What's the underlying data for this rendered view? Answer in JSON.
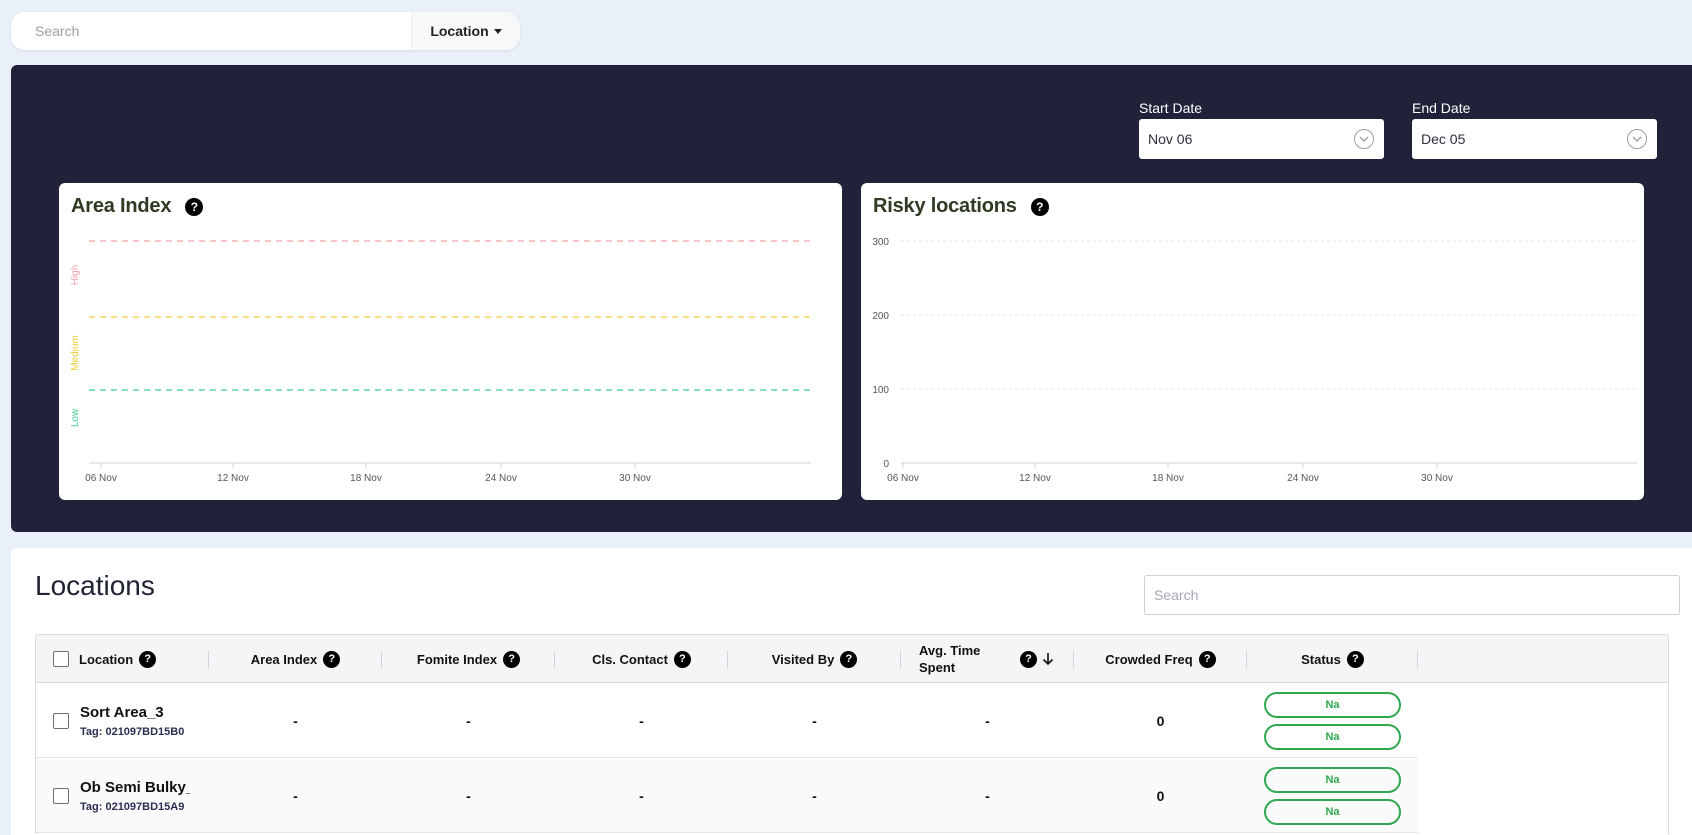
{
  "topbar": {
    "search_placeholder": "Search",
    "location_button": "Location"
  },
  "dates": {
    "start_label": "Start Date",
    "start_value": "Nov 06",
    "end_label": "End Date",
    "end_value": "Dec 05"
  },
  "charts": {
    "area_index_title": "Area Index",
    "risky_title": "Risky locations"
  },
  "chart_data": [
    {
      "type": "line",
      "title": "Area Index",
      "x_ticks": [
        "06 Nov",
        "12 Nov",
        "18 Nov",
        "24 Nov",
        "30 Nov"
      ],
      "y_bands": [
        "Low",
        "Medium",
        "High"
      ],
      "threshold_lines": [
        {
          "name": "High",
          "color": "#f4a3a3"
        },
        {
          "name": "Medium",
          "color": "#f2cc3a"
        },
        {
          "name": "Low",
          "color": "#3fd08a"
        }
      ],
      "series": [],
      "grid": false
    },
    {
      "type": "bar",
      "title": "Risky locations",
      "x_ticks": [
        "06 Nov",
        "12 Nov",
        "18 Nov",
        "24 Nov",
        "30 Nov"
      ],
      "y_ticks": [
        0,
        100,
        200,
        300
      ],
      "ylim": [
        0,
        300
      ],
      "series": [],
      "grid": true
    }
  ],
  "locations": {
    "title": "Locations",
    "search_placeholder": "Search",
    "columns": [
      "Location",
      "Area Index",
      "Fomite Index",
      "Cls. Contact",
      "Visited By",
      "Avg. Time Spent",
      "Crowded Freq",
      "Status"
    ],
    "rows": [
      {
        "name": "Sort Area_3",
        "tag": "Tag: 021097BD15B0",
        "area_index": "-",
        "fomite_index": "-",
        "cls_contact": "-",
        "visited_by": "-",
        "avg_time": "-",
        "crowded_freq": "0",
        "status": [
          "Na",
          "Na"
        ]
      },
      {
        "name": "Ob Semi Bulky_",
        "tag": "Tag: 021097BD15A9",
        "area_index": "-",
        "fomite_index": "-",
        "cls_contact": "-",
        "visited_by": "-",
        "avg_time": "-",
        "crowded_freq": "0",
        "status": [
          "Na",
          "Na"
        ]
      }
    ]
  },
  "colors": {
    "dark_panel": "#1f2238",
    "background": "#e9f0f9",
    "status_green": "#2fa84f",
    "high_line": "#f4a3a3",
    "medium_line": "#f2cc3a",
    "low_line": "#3fd08a"
  }
}
